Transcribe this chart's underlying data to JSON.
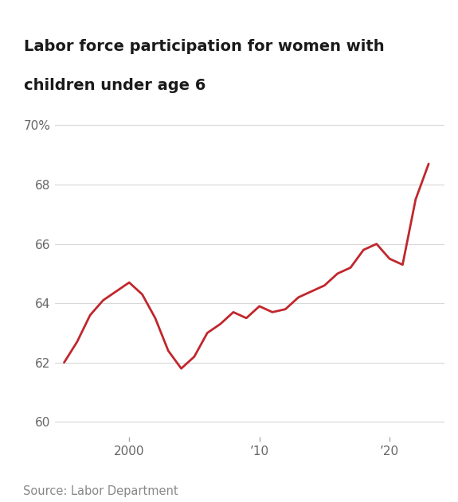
{
  "title_line1": "Labor force participation for women with",
  "title_line2": "children under age 6",
  "source": "Source: Labor Department",
  "line_color": "#c0272d",
  "background_color": "#ffffff",
  "grid_color": "#d8d8d8",
  "title_color": "#1a1a1a",
  "axis_label_color": "#666666",
  "source_color": "#888888",
  "years": [
    1995,
    1996,
    1997,
    1998,
    1999,
    2000,
    2001,
    2002,
    2003,
    2004,
    2005,
    2006,
    2007,
    2008,
    2009,
    2010,
    2011,
    2012,
    2013,
    2014,
    2015,
    2016,
    2017,
    2018,
    2019,
    2020,
    2021,
    2022,
    2023
  ],
  "values": [
    62.0,
    62.7,
    63.6,
    64.1,
    64.4,
    64.7,
    64.3,
    63.5,
    62.4,
    61.8,
    62.2,
    63.0,
    63.3,
    63.7,
    63.5,
    63.9,
    63.7,
    63.8,
    64.2,
    64.4,
    64.6,
    65.0,
    65.2,
    65.8,
    66.0,
    65.5,
    65.3,
    67.5,
    68.7
  ],
  "ylim": [
    59.5,
    70.5
  ],
  "yticks": [
    60,
    62,
    64,
    66,
    68,
    70
  ],
  "ytick_labels": [
    "60",
    "62",
    "64",
    "66",
    "68",
    "70%"
  ],
  "xlim": [
    1994.3,
    2024.2
  ],
  "xtick_positions": [
    2000,
    2010,
    2020
  ],
  "xtick_labels": [
    "2000",
    "’10",
    "’20"
  ],
  "linewidth": 2.0,
  "title_fontsize": 14,
  "tick_fontsize": 11,
  "source_fontsize": 10.5
}
